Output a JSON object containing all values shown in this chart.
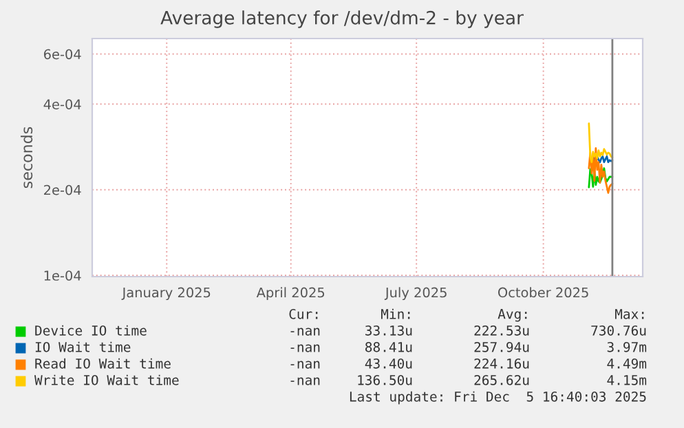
{
  "chart_data": {
    "type": "line",
    "title": "Average latency for /dev/dm-2 - by year",
    "ylabel": "seconds",
    "x": [
      "2025-11-18",
      "2025-11-19",
      "2025-11-20",
      "2025-11-21",
      "2025-11-22",
      "2025-11-23",
      "2025-11-24",
      "2025-11-25",
      "2025-11-26",
      "2025-11-27",
      "2025-11-28",
      "2025-11-29",
      "2025-11-30",
      "2025-12-01",
      "2025-12-02",
      "2025-12-03",
      "2025-12-04",
      "2025-12-05"
    ],
    "series": [
      {
        "name": "Device IO time",
        "color": "#00cc00",
        "values": [
          0.000204,
          0.000236,
          0.000228,
          0.000205,
          0.000232,
          0.000208,
          0.000222,
          0.000214,
          0.000212,
          0.000218,
          0.000226,
          0.000238,
          0.00022,
          0.000214,
          0.000218,
          0.000222,
          0.000222,
          0.000222
        ]
      },
      {
        "name": "IO Wait time",
        "color": "#0066b3",
        "values": [
          null,
          null,
          null,
          0.000248,
          0.000258,
          0.00025,
          0.000262,
          0.000255,
          0.00025,
          0.000258,
          0.000262,
          0.00025,
          0.000256,
          0.000262,
          0.00025,
          0.000254,
          0.000252,
          0.000254
        ]
      },
      {
        "name": "Read IO Wait time",
        "color": "#ff8000",
        "values": [
          0.000238,
          0.00027,
          0.000228,
          0.000262,
          0.000215,
          0.00028,
          0.000235,
          0.00025,
          0.000212,
          0.000245,
          0.000222,
          0.000232,
          0.000215,
          0.000205,
          0.000195,
          0.000205,
          0.000208,
          0.00021
        ]
      },
      {
        "name": "Write IO Wait time",
        "color": "#ffcc00",
        "values": [
          0.000342,
          0.000262,
          0.00025,
          0.000272,
          0.000262,
          0.000268,
          0.000258,
          0.000275,
          0.000262,
          0.00027,
          0.000265,
          0.000278,
          0.000272,
          0.000266,
          0.00027,
          0.000268,
          0.000262,
          0.00026
        ]
      }
    ],
    "log": true,
    "ylim": [
      9.9e-05,
      0.00068
    ],
    "yticks": [
      {
        "value": 0.0001,
        "label": "1e-04"
      },
      {
        "value": 0.0002,
        "label": "2e-04"
      },
      {
        "value": 0.0004,
        "label": "4e-04"
      },
      {
        "value": 0.0006,
        "label": "6e-04"
      }
    ],
    "xlim": [
      "2024-11-23",
      "2025-12-27"
    ],
    "xticks": [
      {
        "value": "2025-01-16",
        "label": "January 2025"
      },
      {
        "value": "2025-04-16",
        "label": "April 2025"
      },
      {
        "value": "2025-07-16",
        "label": "July 2025"
      },
      {
        "value": "2025-10-16",
        "label": "October 2025"
      }
    ],
    "grid": true,
    "legend": "bottom",
    "ref_lines": [
      {
        "axis": "x",
        "value": "2025-12-05",
        "color": "#808080"
      }
    ],
    "annotations": [
      "Cur:",
      "Min:",
      "Avg:",
      "Max:",
      "-nan",
      "33.13u",
      "222.53u",
      "730.76u",
      "-nan",
      "88.41u",
      "257.94u",
      "3.97m",
      "-nan",
      "43.40u",
      "224.16u",
      "4.49m",
      "-nan",
      "136.50u",
      "265.62u",
      "4.15m",
      "Last update: Fri Dec  5 16:40:03 2025"
    ]
  }
}
